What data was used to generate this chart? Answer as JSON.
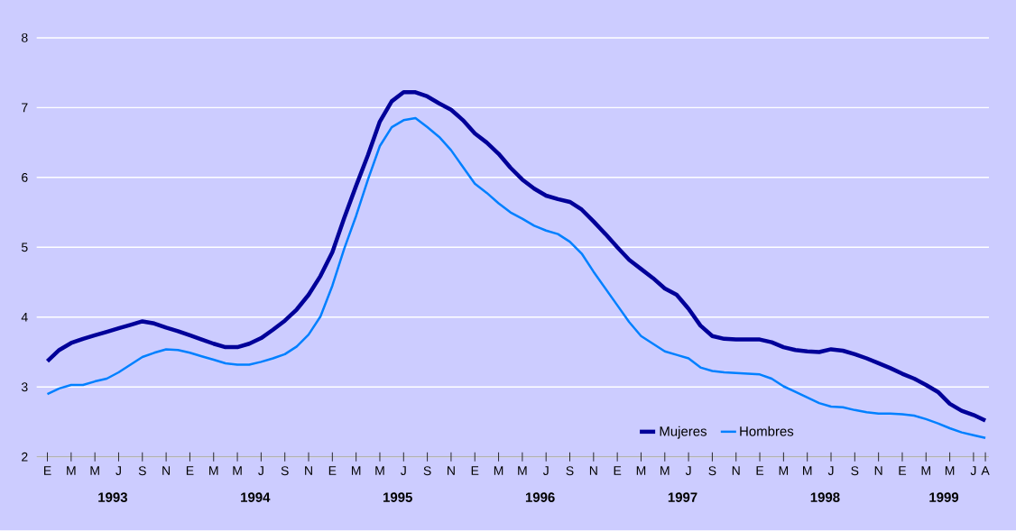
{
  "chart_data": {
    "type": "line",
    "categories": [
      "E",
      null,
      "M",
      null,
      "M",
      null,
      "J",
      null,
      "S",
      null,
      "N",
      null,
      "E",
      null,
      "M",
      null,
      "M",
      null,
      "J",
      null,
      "S",
      null,
      "N",
      null,
      "E",
      null,
      "M",
      null,
      "M",
      null,
      "J",
      null,
      "S",
      null,
      "N",
      null,
      "E",
      null,
      "M",
      null,
      "M",
      null,
      "J",
      null,
      "S",
      null,
      "N",
      null,
      "E",
      null,
      "M",
      null,
      "M",
      null,
      "J",
      null,
      "S",
      null,
      "N",
      null,
      "E",
      null,
      "M",
      null,
      "M",
      null,
      "J",
      null,
      "S",
      null,
      "N",
      null,
      "E",
      null,
      "M",
      null,
      "M",
      null,
      "J",
      "A"
    ],
    "series": [
      {
        "name": "Mujeres",
        "color": "#000099",
        "values": [
          3.37,
          3.53,
          3.63,
          3.69,
          3.74,
          3.79,
          3.84,
          3.89,
          3.94,
          3.91,
          3.85,
          3.8,
          3.74,
          3.68,
          3.62,
          3.57,
          3.57,
          3.62,
          3.7,
          3.82,
          3.95,
          4.11,
          4.32,
          4.59,
          4.93,
          5.42,
          5.88,
          6.32,
          6.8,
          7.09,
          7.22,
          7.22,
          7.16,
          7.06,
          6.97,
          6.82,
          6.63,
          6.5,
          6.34,
          6.14,
          5.97,
          5.84,
          5.74,
          5.69,
          5.65,
          5.54,
          5.37,
          5.19,
          5.0,
          4.82,
          4.69,
          4.56,
          4.41,
          4.32,
          4.12,
          3.88,
          3.73,
          3.69,
          3.68,
          3.68,
          3.68,
          3.64,
          3.57,
          3.53,
          3.51,
          3.5,
          3.54,
          3.52,
          3.47,
          3.41,
          3.34,
          3.27,
          3.19,
          3.12,
          3.03,
          2.93,
          2.76,
          2.66,
          2.6,
          2.52
        ]
      },
      {
        "name": "Hombres",
        "color": "#0080ff",
        "values": [
          2.9,
          2.98,
          3.03,
          3.03,
          3.08,
          3.12,
          3.21,
          3.32,
          3.43,
          3.49,
          3.54,
          3.53,
          3.49,
          3.44,
          3.39,
          3.34,
          3.32,
          3.32,
          3.36,
          3.41,
          3.47,
          3.58,
          3.75,
          4.01,
          4.45,
          4.98,
          5.45,
          5.97,
          6.45,
          6.72,
          6.82,
          6.85,
          6.72,
          6.58,
          6.39,
          6.15,
          5.91,
          5.78,
          5.63,
          5.5,
          5.41,
          5.31,
          5.24,
          5.19,
          5.08,
          4.91,
          4.65,
          4.41,
          4.17,
          3.93,
          3.73,
          3.62,
          3.51,
          3.46,
          3.41,
          3.28,
          3.23,
          3.21,
          3.2,
          3.19,
          3.18,
          3.12,
          3.01,
          2.93,
          2.85,
          2.77,
          2.72,
          2.71,
          2.67,
          2.64,
          2.62,
          2.62,
          2.61,
          2.59,
          2.54,
          2.48,
          2.41,
          2.35,
          2.31,
          2.27
        ]
      }
    ],
    "ylim": [
      2,
      8
    ],
    "yticks": [
      2,
      3,
      4,
      5,
      6,
      7,
      8
    ],
    "grid": "y",
    "legend": "bottom right",
    "annotations": [
      "1993",
      "1994",
      "1995",
      "1996",
      "1997",
      "1998",
      "1999"
    ]
  }
}
